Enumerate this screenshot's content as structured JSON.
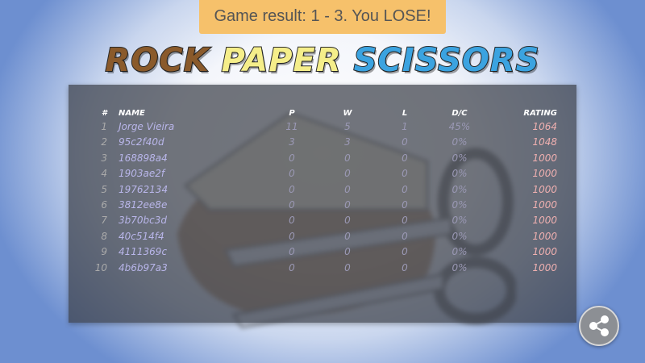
{
  "toast": {
    "text": "Game result: 1 - 3. You LOSE!"
  },
  "logo": {
    "word1": "ROCK",
    "word2": "PAPER",
    "word3": "SCISSORS",
    "colors": [
      "#8a5a2b",
      "#f5ee8a",
      "#3ba3e0"
    ]
  },
  "leaderboard": {
    "headers": {
      "rank": "#",
      "name": "NAME",
      "p": "P",
      "w": "W",
      "l": "L",
      "dc": "D/C",
      "rating": "RATING"
    },
    "rows": [
      {
        "rank": "1",
        "name": "Jorge Vieira",
        "p": "11",
        "w": "5",
        "l": "1",
        "dc": "45%",
        "rating": "1064"
      },
      {
        "rank": "2",
        "name": "95c2f40d",
        "p": "3",
        "w": "3",
        "l": "0",
        "dc": "0%",
        "rating": "1048"
      },
      {
        "rank": "3",
        "name": "168898a4",
        "p": "0",
        "w": "0",
        "l": "0",
        "dc": "0%",
        "rating": "1000"
      },
      {
        "rank": "4",
        "name": "1903ae2f",
        "p": "0",
        "w": "0",
        "l": "0",
        "dc": "0%",
        "rating": "1000"
      },
      {
        "rank": "5",
        "name": "19762134",
        "p": "0",
        "w": "0",
        "l": "0",
        "dc": "0%",
        "rating": "1000"
      },
      {
        "rank": "6",
        "name": "3812ee8e",
        "p": "0",
        "w": "0",
        "l": "0",
        "dc": "0%",
        "rating": "1000"
      },
      {
        "rank": "7",
        "name": "3b70bc3d",
        "p": "0",
        "w": "0",
        "l": "0",
        "dc": "0%",
        "rating": "1000"
      },
      {
        "rank": "8",
        "name": "40c514f4",
        "p": "0",
        "w": "0",
        "l": "0",
        "dc": "0%",
        "rating": "1000"
      },
      {
        "rank": "9",
        "name": "4111369c",
        "p": "0",
        "w": "0",
        "l": "0",
        "dc": "0%",
        "rating": "1000"
      },
      {
        "rank": "10",
        "name": "4b6b97a3",
        "p": "0",
        "w": "0",
        "l": "0",
        "dc": "0%",
        "rating": "1000"
      }
    ]
  },
  "share": {
    "icon": "share-icon"
  }
}
